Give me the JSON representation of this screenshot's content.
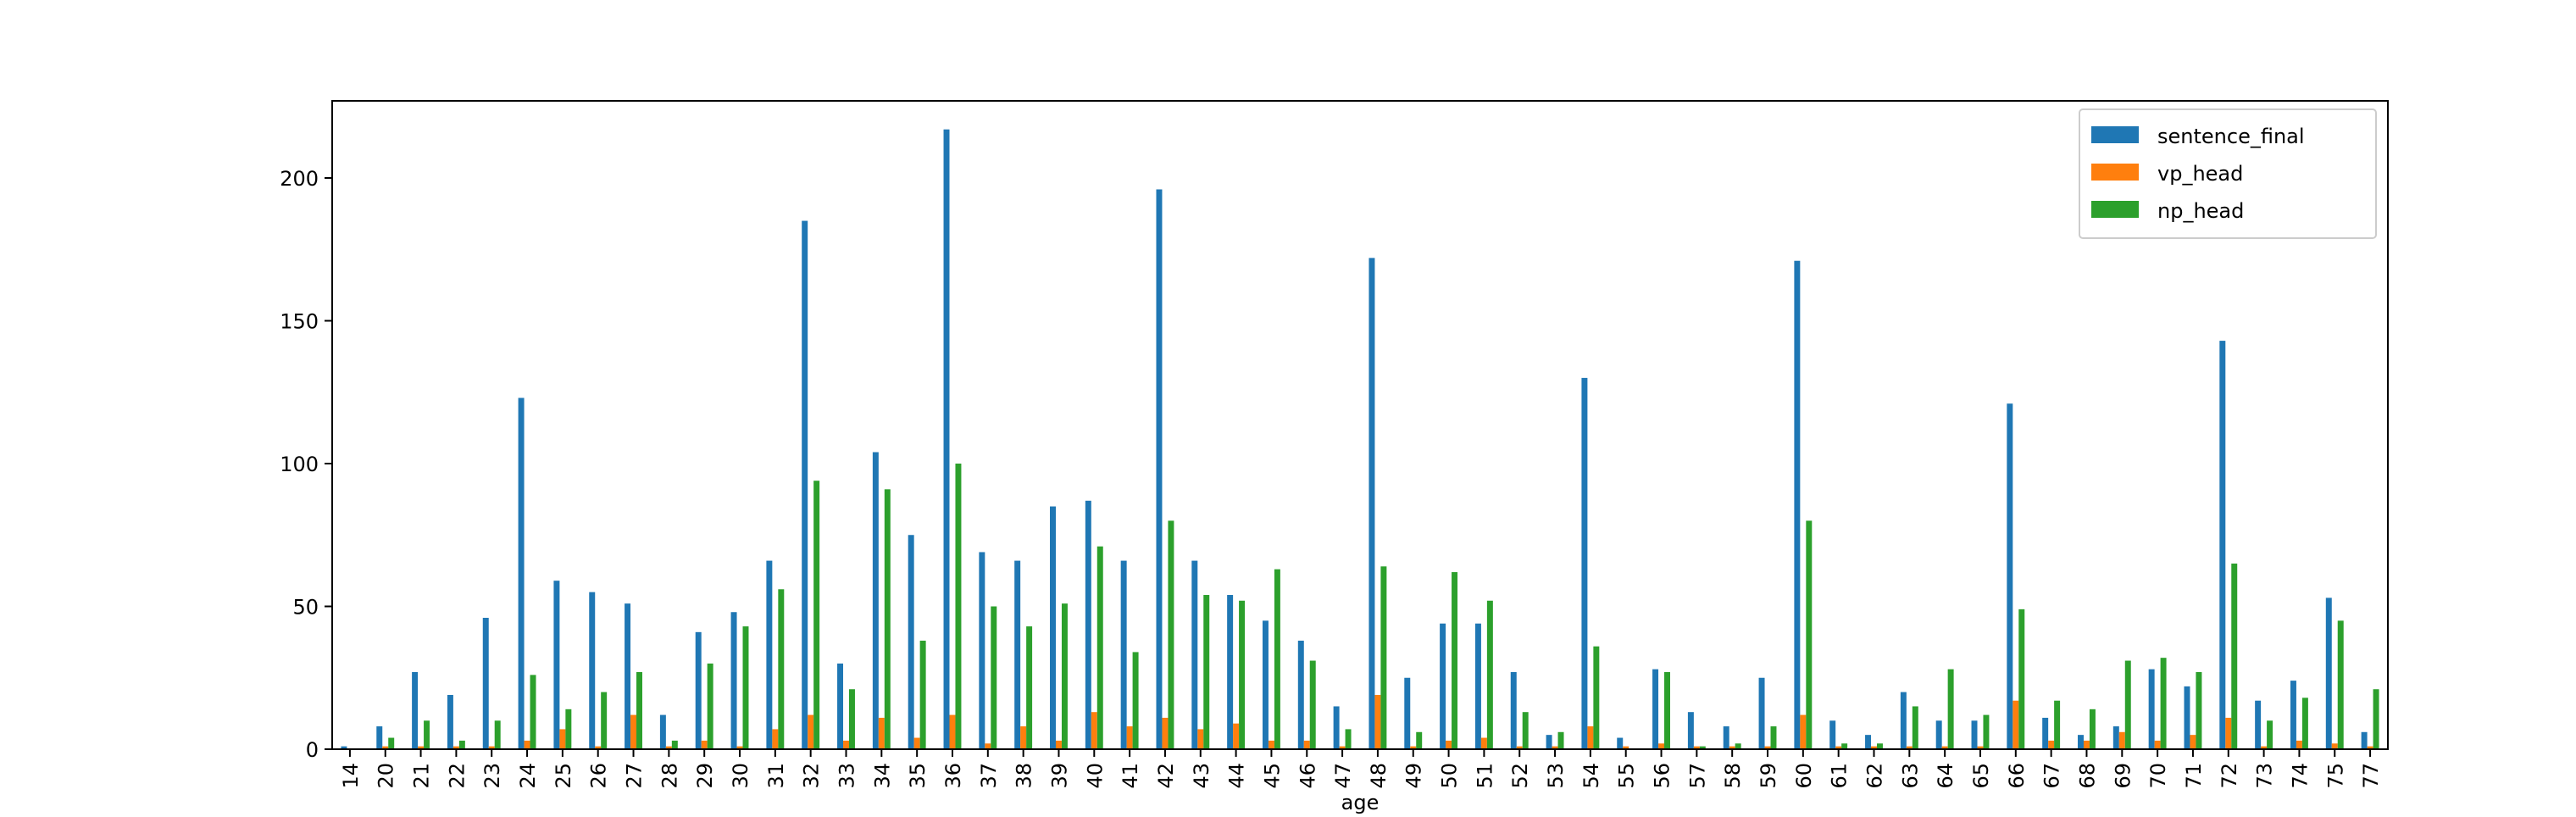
{
  "chart_data": {
    "type": "bar",
    "title": "",
    "xlabel": "age",
    "ylabel": "",
    "ylim": [
      0,
      227
    ],
    "yticks": [
      0,
      50,
      100,
      150,
      200
    ],
    "legend_position": "top-right",
    "grid": false,
    "categories": [
      "14",
      "20",
      "21",
      "22",
      "23",
      "24",
      "25",
      "26",
      "27",
      "28",
      "29",
      "30",
      "31",
      "32",
      "33",
      "34",
      "35",
      "36",
      "37",
      "38",
      "39",
      "40",
      "41",
      "42",
      "43",
      "44",
      "45",
      "46",
      "47",
      "48",
      "49",
      "50",
      "51",
      "52",
      "53",
      "54",
      "55",
      "56",
      "57",
      "58",
      "59",
      "60",
      "61",
      "62",
      "63",
      "64",
      "65",
      "66",
      "67",
      "68",
      "69",
      "70",
      "71",
      "72",
      "73",
      "74",
      "75",
      "77"
    ],
    "series": [
      {
        "name": "sentence_final",
        "color": "#1f77b4",
        "values": [
          1,
          8,
          27,
          19,
          46,
          123,
          59,
          55,
          51,
          12,
          41,
          48,
          66,
          185,
          30,
          104,
          75,
          217,
          69,
          66,
          85,
          87,
          66,
          196,
          66,
          54,
          45,
          38,
          15,
          172,
          25,
          44,
          44,
          27,
          5,
          130,
          4,
          28,
          13,
          8,
          25,
          171,
          10,
          5,
          20,
          10,
          10,
          121,
          11,
          5,
          8,
          28,
          22,
          143,
          17,
          24,
          53,
          6
        ]
      },
      {
        "name": "vp_head",
        "color": "#ff7f0e",
        "values": [
          0,
          1,
          1,
          1,
          1,
          3,
          7,
          1,
          12,
          1,
          3,
          1,
          7,
          12,
          3,
          11,
          4,
          12,
          2,
          8,
          3,
          13,
          8,
          11,
          7,
          9,
          3,
          3,
          1,
          19,
          1,
          3,
          4,
          1,
          1,
          8,
          1,
          2,
          1,
          1,
          1,
          12,
          1,
          1,
          1,
          1,
          1,
          17,
          3,
          3,
          6,
          3,
          5,
          11,
          1,
          3,
          2,
          1
        ]
      },
      {
        "name": "np_head",
        "color": "#2ca02c",
        "values": [
          0,
          4,
          10,
          3,
          10,
          26,
          14,
          20,
          27,
          3,
          30,
          43,
          56,
          94,
          21,
          91,
          38,
          100,
          50,
          43,
          51,
          71,
          34,
          80,
          54,
          52,
          63,
          31,
          7,
          64,
          6,
          62,
          52,
          13,
          6,
          36,
          0,
          27,
          1,
          2,
          8,
          80,
          2,
          2,
          15,
          28,
          12,
          49,
          17,
          14,
          31,
          32,
          27,
          65,
          10,
          18,
          45,
          21
        ]
      }
    ]
  }
}
